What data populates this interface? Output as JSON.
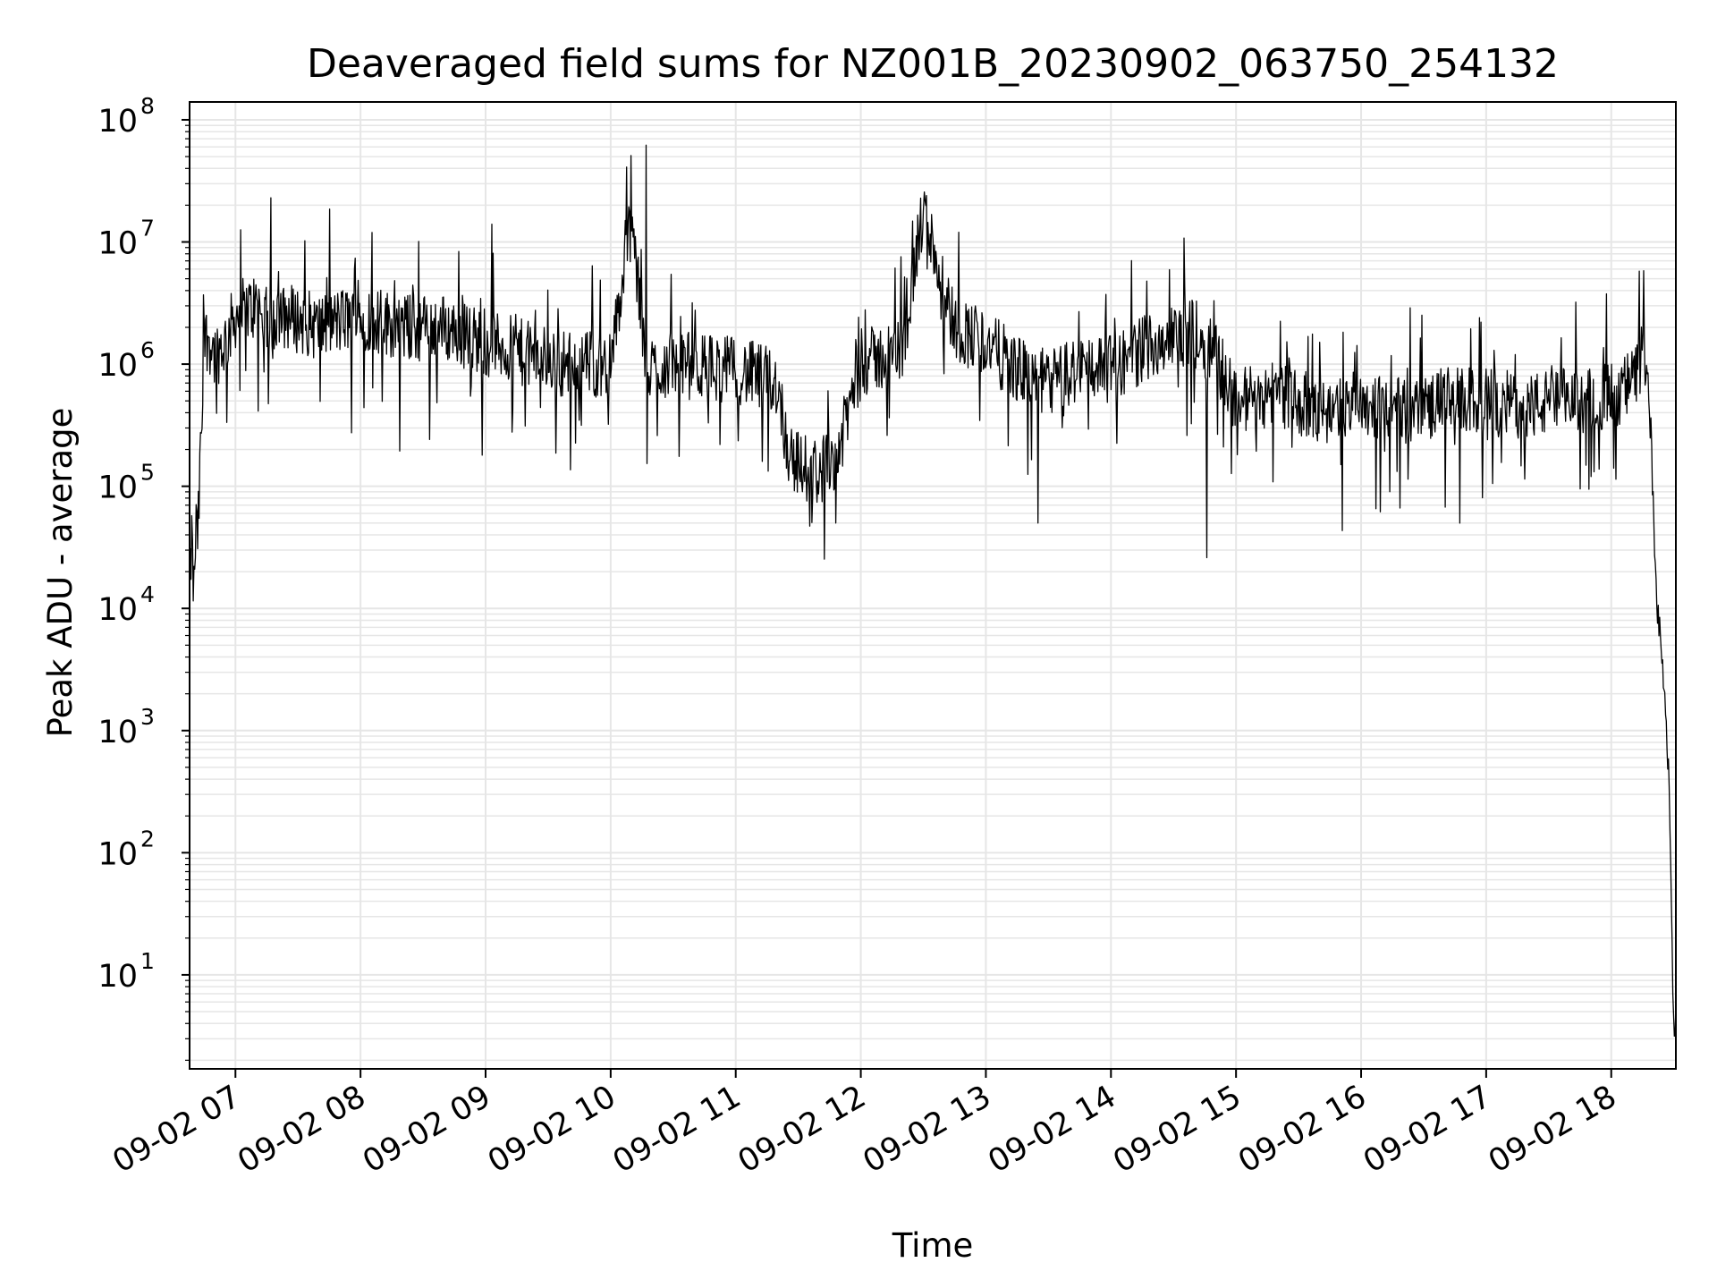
{
  "chart_data": {
    "type": "line",
    "title": "Deaveraged field sums for NZ001B_20230902_063750_254132",
    "xlabel": "Time",
    "ylabel": "Peak ADU - average",
    "yscale": "log",
    "grid": true,
    "line_color": "#000000",
    "grid_color": "#e6e6e6",
    "xlim": [
      "09-02 06:38",
      "09-02 18:31"
    ],
    "ylim": [
      1.7,
      140000000
    ],
    "x_ticks": [
      {
        "label": "09-02 07",
        "value": "09-02 07:00"
      },
      {
        "label": "09-02 08",
        "value": "09-02 08:00"
      },
      {
        "label": "09-02 09",
        "value": "09-02 09:00"
      },
      {
        "label": "09-02 10",
        "value": "09-02 10:00"
      },
      {
        "label": "09-02 11",
        "value": "09-02 11:00"
      },
      {
        "label": "09-02 12",
        "value": "09-02 12:00"
      },
      {
        "label": "09-02 13",
        "value": "09-02 13:00"
      },
      {
        "label": "09-02 14",
        "value": "09-02 14:00"
      },
      {
        "label": "09-02 15",
        "value": "09-02 15:00"
      },
      {
        "label": "09-02 16",
        "value": "09-02 16:00"
      },
      {
        "label": "09-02 17",
        "value": "09-02 17:00"
      },
      {
        "label": "09-02 18",
        "value": "09-02 18:00"
      }
    ],
    "y_ticks": [
      {
        "base": "10",
        "exp": "1",
        "value": 10
      },
      {
        "base": "10",
        "exp": "2",
        "value": 100
      },
      {
        "base": "10",
        "exp": "3",
        "value": 1000
      },
      {
        "base": "10",
        "exp": "4",
        "value": 10000
      },
      {
        "base": "10",
        "exp": "5",
        "value": 100000
      },
      {
        "base": "10",
        "exp": "6",
        "value": 1000000
      },
      {
        "base": "10",
        "exp": "7",
        "value": 10000000
      },
      {
        "base": "10",
        "exp": "8",
        "value": 100000000
      }
    ],
    "series": [
      {
        "x": [
          "09-02 06:38",
          "09-02 06:39",
          "09-02 06:40",
          "09-02 06:41",
          "09-02 06:42",
          "09-02 06:43",
          "09-02 06:44",
          "09-02 06:45",
          "09-02 06:47",
          "09-02 06:50",
          "09-02 06:55",
          "09-02 07:00",
          "09-02 07:10",
          "09-02 07:17",
          "09-02 07:25",
          "09-02 07:40",
          "09-02 08:00",
          "09-02 08:20",
          "09-02 08:40",
          "09-02 09:00",
          "09-02 09:20",
          "09-02 09:40",
          "09-02 10:00",
          "09-02 10:10",
          "09-02 10:17",
          "09-02 10:30",
          "09-02 11:00",
          "09-02 11:20",
          "09-02 11:25",
          "09-02 11:30",
          "09-02 11:40",
          "09-02 11:50",
          "09-02 11:55",
          "09-02 12:00",
          "09-02 12:20",
          "09-02 12:30",
          "09-02 12:45",
          "09-02 13:00",
          "09-02 13:15",
          "09-02 13:30",
          "09-02 13:50",
          "09-02 14:00",
          "09-02 14:20",
          "09-02 14:40",
          "09-02 14:50",
          "09-02 15:00",
          "09-02 15:20",
          "09-02 15:40",
          "09-02 16:00",
          "09-02 16:20",
          "09-02 16:40",
          "09-02 17:00",
          "09-02 17:20",
          "09-02 17:40",
          "09-02 18:00",
          "09-02 18:10",
          "09-02 18:15",
          "09-02 18:18",
          "09-02 18:20",
          "09-02 18:22",
          "09-02 18:24",
          "09-02 18:26",
          "09-02 18:28",
          "09-02 18:29",
          "09-02 18:30",
          "09-02 18:31"
        ],
        "y": [
          10000,
          40000,
          12000,
          45000,
          38000,
          140000,
          350000,
          1500000,
          1700000,
          1200000,
          1500000,
          2500000,
          3000000,
          2000000,
          2500000,
          2000000,
          2500000,
          2000000,
          2000000,
          1500000,
          1200000,
          1000000,
          1000000,
          15000000,
          900000,
          1000000,
          900000,
          700000,
          200000,
          150000,
          130000,
          200000,
          500000,
          1000000,
          1300000,
          18000000,
          2000000,
          1500000,
          900000,
          700000,
          1000000,
          900000,
          1500000,
          1800000,
          1200000,
          500000,
          600000,
          400000,
          500000,
          400000,
          500000,
          500000,
          450000,
          500000,
          550000,
          700000,
          1200000,
          600000,
          80000,
          10000,
          5000,
          1500,
          300,
          20,
          4,
          4
        ]
      }
    ],
    "spikes": [
      {
        "x": "09-02 07:17",
        "y": 23000000
      },
      {
        "x": "09-02 10:17",
        "y": 62000000
      },
      {
        "x": "09-02 10:07",
        "y": 15000000
      },
      {
        "x": "09-02 12:30",
        "y": 18000000
      },
      {
        "x": "09-02 12:47",
        "y": 12000000
      },
      {
        "x": "09-02 09:03",
        "y": 14000000
      },
      {
        "x": "09-02 11:48",
        "y": 50000
      },
      {
        "x": "09-02 13:25",
        "y": 50000
      },
      {
        "x": "09-02 14:46",
        "y": 26000
      }
    ]
  }
}
